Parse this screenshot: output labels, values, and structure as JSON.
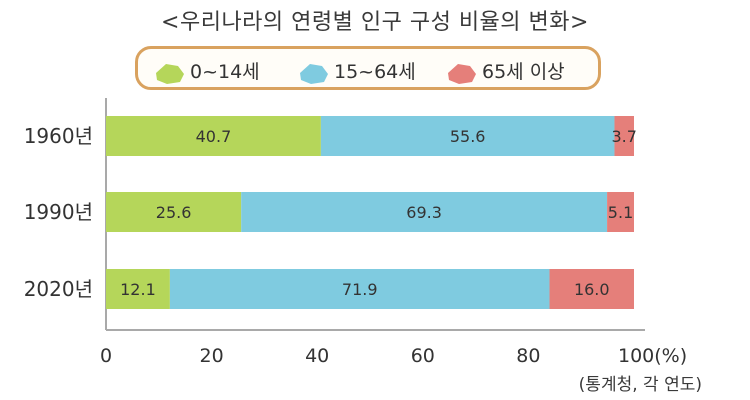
{
  "chart_data": {
    "type": "bar",
    "orientation": "horizontal",
    "stacked": true,
    "title": "<우리나라의 연령별 인구 구성 비율의 변화>",
    "categories": [
      "1960년",
      "1990년",
      "2020년"
    ],
    "series": [
      {
        "name": "0~14세",
        "values": [
          40.7,
          25.6,
          12.1
        ],
        "color": "#b5d65a"
      },
      {
        "name": "15~64세",
        "values": [
          55.6,
          69.3,
          71.9
        ],
        "color": "#7fcbe0"
      },
      {
        "name": "65세 이상",
        "values": [
          3.7,
          5.1,
          16.0
        ],
        "color": "#e57f7a"
      }
    ],
    "value_labels": [
      [
        "40.7",
        "55.6",
        "3.7"
      ],
      [
        "25.6",
        "69.3",
        "5.1"
      ],
      [
        "12.1",
        "71.9",
        "16.0"
      ]
    ],
    "xlim": [
      0,
      100
    ],
    "x_ticks": [
      "0",
      "20",
      "40",
      "60",
      "80",
      "100(%)"
    ],
    "legend_position": "top",
    "grid": false,
    "source": "(통계청, 각 연도)"
  }
}
